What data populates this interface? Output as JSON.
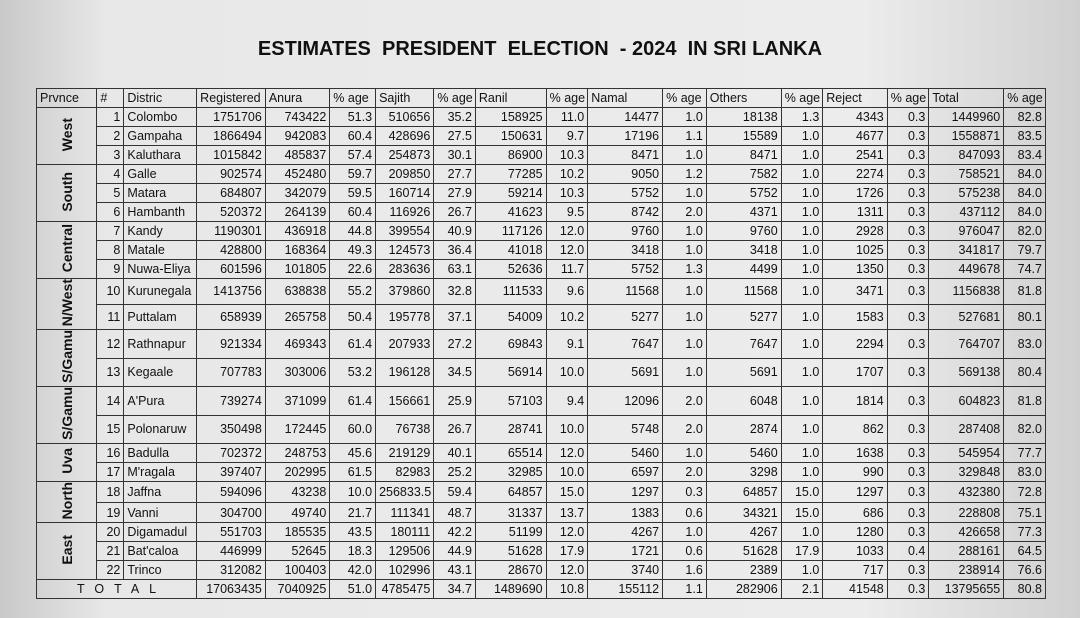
{
  "title": "ESTIMATES  PRESIDENT  ELECTION  - 2024  IN SRI LANKA",
  "table": {
    "header": [
      "Prvnce",
      "#",
      "Distric",
      "Registered",
      "Anura",
      "% age",
      "Sajith",
      "% age",
      "Ranil",
      "% age",
      "Namal",
      "% age",
      "Others",
      "% age",
      "Reject",
      "% age",
      "Total",
      "% age"
    ],
    "provinces": [
      {
        "name": "West",
        "rows": [
          [
            "1",
            "Colombo",
            "1751706",
            "743422",
            "51.3",
            "510656",
            "35.2",
            "158925",
            "11.0",
            "14477",
            "1.0",
            "18138",
            "1.3",
            "4343",
            "0.3",
            "1449960",
            "82.8"
          ],
          [
            "2",
            "Gampaha",
            "1866494",
            "942083",
            "60.4",
            "428696",
            "27.5",
            "150631",
            "9.7",
            "17196",
            "1.1",
            "15589",
            "1.0",
            "4677",
            "0.3",
            "1558871",
            "83.5"
          ],
          [
            "3",
            "Kaluthara",
            "1015842",
            "485837",
            "57.4",
            "254873",
            "30.1",
            "86900",
            "10.3",
            "8471",
            "1.0",
            "8471",
            "1.0",
            "2541",
            "0.3",
            "847093",
            "83.4"
          ]
        ]
      },
      {
        "name": "South",
        "rows": [
          [
            "4",
            "Galle",
            "902574",
            "452480",
            "59.7",
            "209850",
            "27.7",
            "77285",
            "10.2",
            "9050",
            "1.2",
            "7582",
            "1.0",
            "2274",
            "0.3",
            "758521",
            "84.0"
          ],
          [
            "5",
            "Matara",
            "684807",
            "342079",
            "59.5",
            "160714",
            "27.9",
            "59214",
            "10.3",
            "5752",
            "1.0",
            "5752",
            "1.0",
            "1726",
            "0.3",
            "575238",
            "84.0"
          ],
          [
            "6",
            "Hambanth",
            "520372",
            "264139",
            "60.4",
            "116926",
            "26.7",
            "41623",
            "9.5",
            "8742",
            "2.0",
            "4371",
            "1.0",
            "1311",
            "0.3",
            "437112",
            "84.0"
          ]
        ]
      },
      {
        "name": "Central",
        "rows": [
          [
            "7",
            "Kandy",
            "1190301",
            "436918",
            "44.8",
            "399554",
            "40.9",
            "117126",
            "12.0",
            "9760",
            "1.0",
            "9760",
            "1.0",
            "2928",
            "0.3",
            "976047",
            "82.0"
          ],
          [
            "8",
            "Matale",
            "428800",
            "168364",
            "49.3",
            "124573",
            "36.4",
            "41018",
            "12.0",
            "3418",
            "1.0",
            "3418",
            "1.0",
            "1025",
            "0.3",
            "341817",
            "79.7"
          ],
          [
            "9",
            "Nuwa-Eliya",
            "601596",
            "101805",
            "22.6",
            "283636",
            "63.1",
            "52636",
            "11.7",
            "5752",
            "1.3",
            "4499",
            "1.0",
            "1350",
            "0.3",
            "449678",
            "74.7"
          ]
        ]
      },
      {
        "name": "N/West",
        "rows": [
          [
            "10",
            "Kurunegala",
            "1413756",
            "638838",
            "55.2",
            "379860",
            "32.8",
            "111533",
            "9.6",
            "11568",
            "1.0",
            "11568",
            "1.0",
            "3471",
            "0.3",
            "1156838",
            "81.8"
          ],
          [
            "11",
            "Puttalam",
            "658939",
            "265758",
            "50.4",
            "195778",
            "37.1",
            "54009",
            "10.2",
            "5277",
            "1.0",
            "5277",
            "1.0",
            "1583",
            "0.3",
            "527681",
            "80.1"
          ]
        ]
      },
      {
        "name": "S/Gamu",
        "rows": [
          [
            "12",
            "Rathnapur",
            "921334",
            "469343",
            "61.4",
            "207933",
            "27.2",
            "69843",
            "9.1",
            "7647",
            "1.0",
            "7647",
            "1.0",
            "2294",
            "0.3",
            "764707",
            "83.0"
          ],
          [
            "13",
            "Kegaale",
            "707783",
            "303006",
            "53.2",
            "196128",
            "34.5",
            "56914",
            "10.0",
            "5691",
            "1.0",
            "5691",
            "1.0",
            "1707",
            "0.3",
            "569138",
            "80.4"
          ]
        ]
      },
      {
        "name": "S/Gamu",
        "rows": [
          [
            "14",
            "A'Pura",
            "739274",
            "371099",
            "61.4",
            "156661",
            "25.9",
            "57103",
            "9.4",
            "12096",
            "2.0",
            "6048",
            "1.0",
            "1814",
            "0.3",
            "604823",
            "81.8"
          ],
          [
            "15",
            "Polonaruw",
            "350498",
            "172445",
            "60.0",
            "76738",
            "26.7",
            "28741",
            "10.0",
            "5748",
            "2.0",
            "2874",
            "1.0",
            "862",
            "0.3",
            "287408",
            "82.0"
          ]
        ]
      },
      {
        "name": "Uva",
        "rows": [
          [
            "16",
            "Badulla",
            "702372",
            "248753",
            "45.6",
            "219129",
            "40.1",
            "65514",
            "12.0",
            "5460",
            "1.0",
            "5460",
            "1.0",
            "1638",
            "0.3",
            "545954",
            "77.7"
          ],
          [
            "17",
            "M'ragala",
            "397407",
            "202995",
            "61.5",
            "82983",
            "25.2",
            "32985",
            "10.0",
            "6597",
            "2.0",
            "3298",
            "1.0",
            "990",
            "0.3",
            "329848",
            "83.0"
          ]
        ]
      },
      {
        "name": "North",
        "rows": [
          [
            "18",
            "Jaffna",
            "594096",
            "43238",
            "10.0",
            "256833.5",
            "59.4",
            "64857",
            "15.0",
            "1297",
            "0.3",
            "64857",
            "15.0",
            "1297",
            "0.3",
            "432380",
            "72.8"
          ],
          [
            "19",
            "Vanni",
            "304700",
            "49740",
            "21.7",
            "111341",
            "48.7",
            "31337",
            "13.7",
            "1383",
            "0.6",
            "34321",
            "15.0",
            "686",
            "0.3",
            "228808",
            "75.1"
          ]
        ]
      },
      {
        "name": "East",
        "rows": [
          [
            "20",
            "Digamadul",
            "551703",
            "185535",
            "43.5",
            "180111",
            "42.2",
            "51199",
            "12.0",
            "4267",
            "1.0",
            "4267",
            "1.0",
            "1280",
            "0.3",
            "426658",
            "77.3"
          ],
          [
            "21",
            "Bat'caloa",
            "446999",
            "52645",
            "18.3",
            "129506",
            "44.9",
            "51628",
            "17.9",
            "1721",
            "0.6",
            "51628",
            "17.9",
            "1033",
            "0.4",
            "288161",
            "64.5"
          ],
          [
            "22",
            "Trinco",
            "312082",
            "100403",
            "42.0",
            "102996",
            "43.1",
            "28670",
            "12.0",
            "3740",
            "1.6",
            "2389",
            "1.0",
            "717",
            "0.3",
            "238914",
            "76.6"
          ]
        ]
      }
    ],
    "total": {
      "label": "TOTAL",
      "cells": [
        "17063435",
        "7040925",
        "51.0",
        "4785475",
        "34.7",
        "1489690",
        "10.8",
        "155112",
        "1.1",
        "282906",
        "2.1",
        "41548",
        "0.3",
        "13795655",
        "80.8"
      ]
    }
  }
}
